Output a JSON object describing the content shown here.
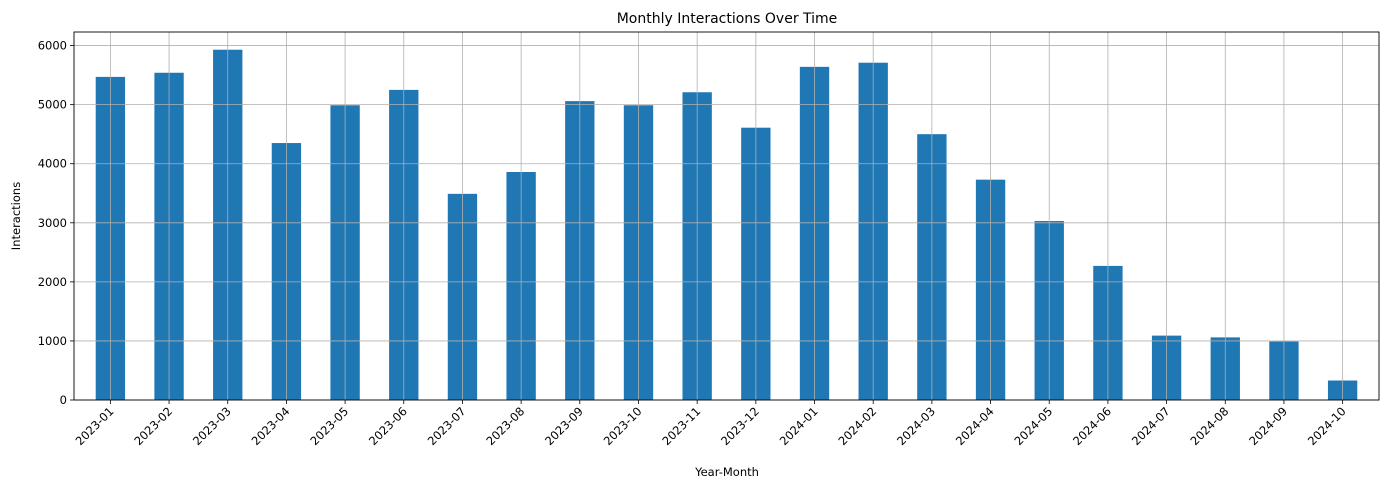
{
  "chart_data": {
    "type": "bar",
    "title": "Monthly Interactions Over Time",
    "xlabel": "Year-Month",
    "ylabel": "Interactions",
    "categories": [
      "2023-01",
      "2023-02",
      "2023-03",
      "2023-04",
      "2023-05",
      "2023-06",
      "2023-07",
      "2023-08",
      "2023-09",
      "2023-10",
      "2023-11",
      "2023-12",
      "2024-01",
      "2024-02",
      "2024-03",
      "2024-04",
      "2024-05",
      "2024-06",
      "2024-07",
      "2024-08",
      "2024-09",
      "2024-10"
    ],
    "values": [
      5470,
      5540,
      5930,
      4350,
      4990,
      5250,
      3490,
      3860,
      5060,
      4990,
      5210,
      4610,
      5640,
      5710,
      4500,
      3730,
      3030,
      2270,
      1090,
      1060,
      990,
      330
    ],
    "ylim": [
      0,
      6230
    ],
    "yticks": [
      0,
      1000,
      2000,
      3000,
      4000,
      5000,
      6000
    ],
    "grid": true,
    "bar_color": "#1f77b4",
    "grid_color": "#b0b0b0"
  }
}
